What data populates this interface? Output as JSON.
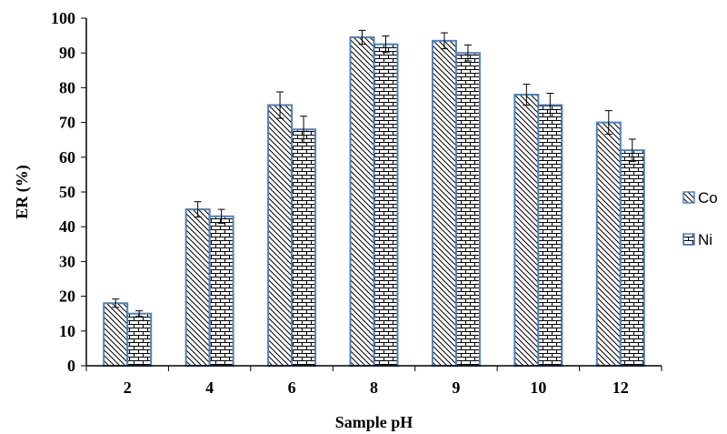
{
  "chart_data": {
    "type": "bar",
    "title": "",
    "xlabel": "Sample pH",
    "ylabel": "ER (%)",
    "categories": [
      "2",
      "4",
      "6",
      "8",
      "9",
      "10",
      "12"
    ],
    "ylim": [
      0,
      100
    ],
    "yticks": [
      "0",
      "10",
      "20",
      "30",
      "40",
      "50",
      "60",
      "70",
      "80",
      "90",
      "100"
    ],
    "grid": false,
    "legend_position": "right",
    "series": [
      {
        "name": "Co",
        "values": [
          18,
          45,
          75,
          94.5,
          93.5,
          78,
          70
        ],
        "errors": [
          1.2,
          2.2,
          3.8,
          2.0,
          2.3,
          3.0,
          3.4
        ],
        "pattern": "diagonal-hatch",
        "color": "#4f81bd"
      },
      {
        "name": "Ni",
        "values": [
          15,
          43,
          68,
          92.5,
          90,
          75,
          62
        ],
        "errors": [
          0.8,
          2.0,
          3.8,
          2.4,
          2.3,
          3.4,
          3.2
        ],
        "pattern": "brick",
        "color": "#4f81bd"
      }
    ]
  }
}
